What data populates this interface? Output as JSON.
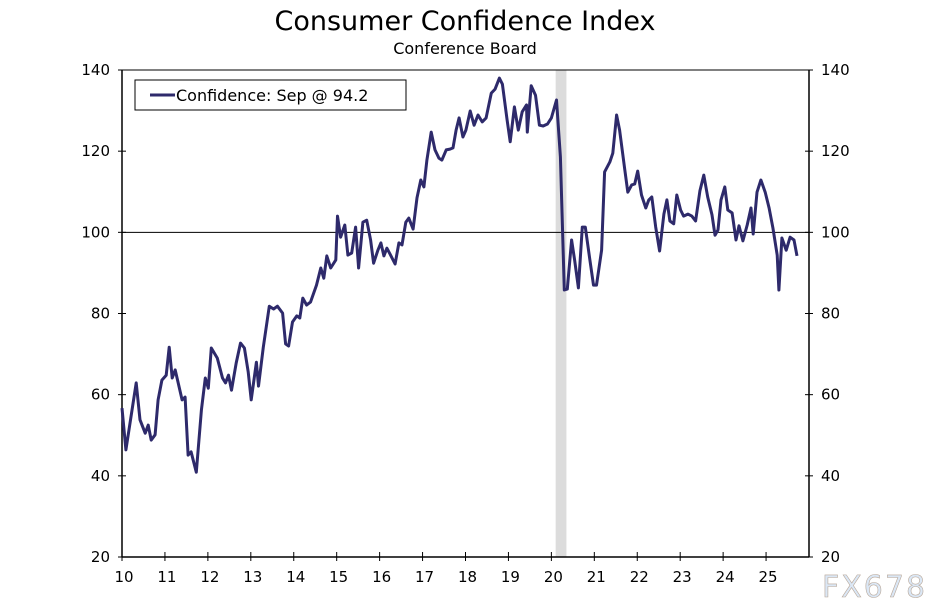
{
  "chart_data": {
    "type": "line",
    "title": "Consumer Confidence Index",
    "subtitle": "Conference Board",
    "xlabel": "",
    "ylabel": "",
    "xlim": [
      2010,
      2026
    ],
    "ylim": [
      20,
      140
    ],
    "x_ticks": [
      2010,
      2011,
      2012,
      2013,
      2014,
      2015,
      2016,
      2017,
      2018,
      2019,
      2020,
      2021,
      2022,
      2023,
      2024,
      2025
    ],
    "x_tick_labels": [
      "10",
      "11",
      "12",
      "13",
      "14",
      "15",
      "16",
      "17",
      "18",
      "19",
      "20",
      "21",
      "22",
      "23",
      "24",
      "25"
    ],
    "y_ticks": [
      20,
      40,
      60,
      80,
      100,
      120,
      140
    ],
    "y_tick_labels": [
      "20",
      "40",
      "60",
      "80",
      "100",
      "120",
      "140"
    ],
    "y_axis_both_sides": true,
    "reference_line": 100,
    "grid": false,
    "legend_placement": "top-left",
    "recession_shading": [
      [
        2020.1,
        2020.35
      ]
    ],
    "colors": {
      "series": "#2e2a6b",
      "recession": "#dcdcdc",
      "axis": "#000000"
    },
    "series": [
      {
        "name": "Confidence: Sep @ 94.2",
        "points": [
          [
            2010.0,
            56.7
          ],
          [
            2010.09,
            46.4
          ],
          [
            2010.33,
            62.9
          ],
          [
            2010.42,
            53.8
          ],
          [
            2010.54,
            50.5
          ],
          [
            2010.61,
            52.5
          ],
          [
            2010.68,
            48.8
          ],
          [
            2010.77,
            50.1
          ],
          [
            2010.84,
            58.7
          ],
          [
            2010.93,
            63.6
          ],
          [
            2011.03,
            64.8
          ],
          [
            2011.1,
            71.7
          ],
          [
            2011.17,
            64.1
          ],
          [
            2011.24,
            66.1
          ],
          [
            2011.4,
            58.7
          ],
          [
            2011.47,
            59.4
          ],
          [
            2011.54,
            45.1
          ],
          [
            2011.61,
            45.9
          ],
          [
            2011.73,
            40.9
          ],
          [
            2011.85,
            56.2
          ],
          [
            2011.94,
            64.1
          ],
          [
            2012.01,
            61.6
          ],
          [
            2012.08,
            71.5
          ],
          [
            2012.22,
            69.0
          ],
          [
            2012.34,
            64.1
          ],
          [
            2012.41,
            62.9
          ],
          [
            2012.48,
            64.8
          ],
          [
            2012.55,
            61.1
          ],
          [
            2012.66,
            67.8
          ],
          [
            2012.76,
            72.7
          ],
          [
            2012.85,
            71.5
          ],
          [
            2012.94,
            65.6
          ],
          [
            2013.01,
            58.7
          ],
          [
            2013.13,
            68.0
          ],
          [
            2013.18,
            62.1
          ],
          [
            2013.29,
            71.7
          ],
          [
            2013.43,
            81.8
          ],
          [
            2013.53,
            81.1
          ],
          [
            2013.62,
            81.8
          ],
          [
            2013.74,
            80.1
          ],
          [
            2013.81,
            72.5
          ],
          [
            2013.88,
            72.0
          ],
          [
            2013.97,
            77.9
          ],
          [
            2014.07,
            79.4
          ],
          [
            2014.14,
            78.9
          ],
          [
            2014.21,
            83.8
          ],
          [
            2014.3,
            82.1
          ],
          [
            2014.39,
            82.8
          ],
          [
            2014.53,
            87.0
          ],
          [
            2014.63,
            91.2
          ],
          [
            2014.7,
            88.7
          ],
          [
            2014.77,
            94.2
          ],
          [
            2014.86,
            91.2
          ],
          [
            2014.98,
            93.2
          ],
          [
            2015.02,
            104.0
          ],
          [
            2015.09,
            98.8
          ],
          [
            2015.19,
            101.8
          ],
          [
            2015.26,
            94.4
          ],
          [
            2015.35,
            94.9
          ],
          [
            2015.44,
            101.3
          ],
          [
            2015.51,
            91.2
          ],
          [
            2015.61,
            102.5
          ],
          [
            2015.7,
            103.0
          ],
          [
            2015.79,
            98.1
          ],
          [
            2015.86,
            92.4
          ],
          [
            2015.96,
            95.6
          ],
          [
            2016.03,
            97.4
          ],
          [
            2016.1,
            94.2
          ],
          [
            2016.17,
            96.1
          ],
          [
            2016.24,
            94.7
          ],
          [
            2016.36,
            92.2
          ],
          [
            2016.45,
            97.4
          ],
          [
            2016.52,
            96.9
          ],
          [
            2016.61,
            102.5
          ],
          [
            2016.68,
            103.5
          ],
          [
            2016.78,
            100.8
          ],
          [
            2016.87,
            108.5
          ],
          [
            2016.96,
            112.9
          ],
          [
            2017.03,
            111.2
          ],
          [
            2017.1,
            117.8
          ],
          [
            2017.2,
            124.7
          ],
          [
            2017.29,
            120.3
          ],
          [
            2017.38,
            118.3
          ],
          [
            2017.45,
            117.8
          ],
          [
            2017.55,
            120.3
          ],
          [
            2017.64,
            120.5
          ],
          [
            2017.71,
            120.8
          ],
          [
            2017.78,
            125.2
          ],
          [
            2017.85,
            128.2
          ],
          [
            2017.94,
            123.5
          ],
          [
            2018.01,
            125.2
          ],
          [
            2018.11,
            129.9
          ],
          [
            2018.2,
            126.4
          ],
          [
            2018.29,
            128.9
          ],
          [
            2018.39,
            127.2
          ],
          [
            2018.48,
            128.2
          ],
          [
            2018.6,
            134.3
          ],
          [
            2018.69,
            135.3
          ],
          [
            2018.79,
            138.0
          ],
          [
            2018.86,
            136.5
          ],
          [
            2018.97,
            127.7
          ],
          [
            2019.04,
            122.3
          ],
          [
            2019.14,
            130.9
          ],
          [
            2019.23,
            125.2
          ],
          [
            2019.32,
            129.7
          ],
          [
            2019.42,
            131.4
          ],
          [
            2019.44,
            124.7
          ],
          [
            2019.53,
            136.1
          ],
          [
            2019.63,
            133.8
          ],
          [
            2019.72,
            126.4
          ],
          [
            2019.81,
            126.2
          ],
          [
            2019.91,
            126.7
          ],
          [
            2020.0,
            128.2
          ],
          [
            2020.12,
            132.6
          ],
          [
            2020.21,
            118.6
          ],
          [
            2020.3,
            85.8
          ],
          [
            2020.37,
            86.0
          ],
          [
            2020.47,
            98.1
          ],
          [
            2020.54,
            93.2
          ],
          [
            2020.63,
            86.3
          ],
          [
            2020.72,
            101.3
          ],
          [
            2020.79,
            101.3
          ],
          [
            2020.89,
            93.7
          ],
          [
            2020.98,
            87.0
          ],
          [
            2021.05,
            87.0
          ],
          [
            2021.17,
            95.6
          ],
          [
            2021.24,
            114.9
          ],
          [
            2021.36,
            117.3
          ],
          [
            2021.43,
            119.5
          ],
          [
            2021.52,
            128.9
          ],
          [
            2021.59,
            125.2
          ],
          [
            2021.71,
            115.4
          ],
          [
            2021.78,
            109.9
          ],
          [
            2021.87,
            111.7
          ],
          [
            2021.94,
            111.9
          ],
          [
            2022.01,
            115.1
          ],
          [
            2022.1,
            109.2
          ],
          [
            2022.2,
            106.0
          ],
          [
            2022.27,
            108.0
          ],
          [
            2022.34,
            108.7
          ],
          [
            2022.43,
            101.3
          ],
          [
            2022.52,
            95.4
          ],
          [
            2022.62,
            104.5
          ],
          [
            2022.69,
            108.0
          ],
          [
            2022.76,
            102.8
          ],
          [
            2022.85,
            102.1
          ],
          [
            2022.92,
            109.2
          ],
          [
            2023.01,
            105.5
          ],
          [
            2023.08,
            104.0
          ],
          [
            2023.18,
            104.5
          ],
          [
            2023.27,
            104.0
          ],
          [
            2023.36,
            102.8
          ],
          [
            2023.46,
            110.2
          ],
          [
            2023.55,
            114.1
          ],
          [
            2023.64,
            108.7
          ],
          [
            2023.74,
            104.3
          ],
          [
            2023.81,
            99.3
          ],
          [
            2023.88,
            100.6
          ],
          [
            2023.95,
            108.0
          ],
          [
            2024.04,
            111.2
          ],
          [
            2024.11,
            105.5
          ],
          [
            2024.21,
            104.8
          ],
          [
            2024.3,
            98.1
          ],
          [
            2024.37,
            101.6
          ],
          [
            2024.46,
            97.9
          ],
          [
            2024.56,
            101.8
          ],
          [
            2024.65,
            106.0
          ],
          [
            2024.7,
            99.6
          ],
          [
            2024.79,
            109.9
          ],
          [
            2024.88,
            112.9
          ],
          [
            2024.98,
            109.9
          ],
          [
            2025.07,
            106.0
          ],
          [
            2025.16,
            101.1
          ],
          [
            2025.26,
            94.4
          ],
          [
            2025.3,
            85.8
          ],
          [
            2025.37,
            98.6
          ],
          [
            2025.47,
            95.6
          ],
          [
            2025.56,
            98.8
          ],
          [
            2025.65,
            98.1
          ],
          [
            2025.72,
            94.2
          ]
        ]
      }
    ]
  },
  "watermark": "FX678"
}
